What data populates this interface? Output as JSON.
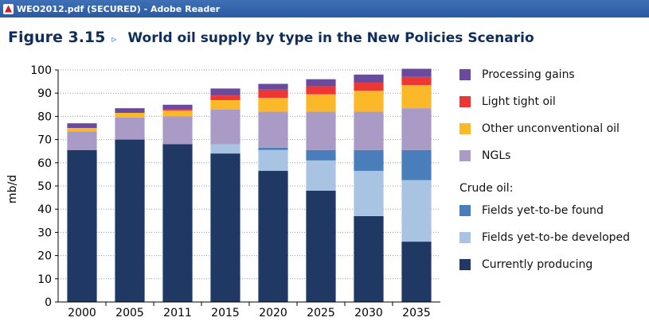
{
  "window": {
    "title": "WEO2012.pdf (SECURED) - Adobe Reader"
  },
  "figure": {
    "number": "Figure 3.15",
    "arrow": "▹",
    "title": "World oil supply by type in the New Policies Scenario"
  },
  "chart_data": {
    "type": "bar",
    "stacked": true,
    "ylabel": "mb/d",
    "ylim": [
      0,
      100
    ],
    "ytick_step": 10,
    "grid": true,
    "categories": [
      "2000",
      "2005",
      "2011",
      "2015",
      "2020",
      "2025",
      "2030",
      "2035"
    ],
    "series": [
      {
        "name": "Currently producing",
        "color": "#1f3864",
        "values": [
          65.5,
          70,
          68,
          64,
          56.5,
          48,
          37,
          26
        ]
      },
      {
        "name": "Fields yet-to-be developed",
        "color": "#a9c4e3",
        "values": [
          0,
          0,
          0,
          4,
          9,
          13,
          19.5,
          26.5
        ]
      },
      {
        "name": "Fields yet-to-be found",
        "color": "#4a7ebb",
        "values": [
          0,
          0,
          0,
          0,
          1,
          4.5,
          9,
          13
        ]
      },
      {
        "name": "NGLs",
        "color": "#a99bc6",
        "values": [
          8,
          9.5,
          12,
          15,
          15.5,
          16.5,
          16.5,
          18
        ]
      },
      {
        "name": "Other unconventional oil",
        "color": "#fbb829",
        "values": [
          1.5,
          2,
          2.5,
          4,
          6,
          7.5,
          9,
          10
        ]
      },
      {
        "name": "Light tight oil",
        "color": "#ee3634",
        "values": [
          0,
          0,
          0.5,
          2,
          3.5,
          3.5,
          3.5,
          3.5
        ]
      },
      {
        "name": "Processing gains",
        "color": "#6a4a9c",
        "values": [
          2,
          2,
          2,
          3,
          2.5,
          3,
          3.5,
          3.5
        ]
      }
    ]
  },
  "legend": {
    "crude_heading": "Crude oil:",
    "items": [
      {
        "label": "Processing gains",
        "color": "#6a4a9c"
      },
      {
        "label": "Light tight oil",
        "color": "#ee3634"
      },
      {
        "label": "Other unconventional oil",
        "color": "#fbb829"
      },
      {
        "label": "NGLs",
        "color": "#a99bc6"
      },
      {
        "label": "Fields yet-to-be found",
        "color": "#4a7ebb"
      },
      {
        "label": "Fields yet-to-be developed",
        "color": "#a9c4e3"
      },
      {
        "label": "Currently producing",
        "color": "#1f3864"
      }
    ]
  }
}
